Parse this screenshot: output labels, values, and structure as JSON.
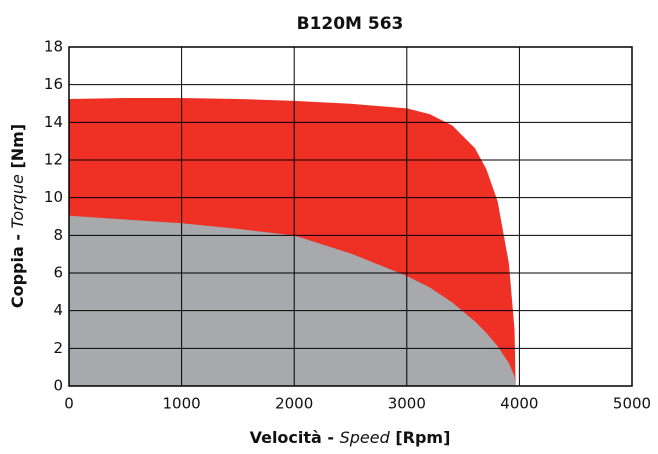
{
  "chart_data": {
    "type": "area",
    "title": "B120M 563",
    "xlabel_parts": [
      {
        "text": "Velocità - ",
        "italic": false
      },
      {
        "text": "Speed",
        "italic": true
      },
      {
        "text": " [Rpm]",
        "italic": false
      }
    ],
    "ylabel_parts": [
      {
        "text": "Coppia - ",
        "italic": false
      },
      {
        "text": "Torque",
        "italic": true
      },
      {
        "text": " [Nm]",
        "italic": false
      }
    ],
    "x": [
      0,
      500,
      1000,
      1500,
      2000,
      2500,
      3000,
      3200,
      3400,
      3600,
      3700,
      3800,
      3900,
      3950,
      3960
    ],
    "series": [
      {
        "color": "#ee3124",
        "values": [
          15.2,
          15.25,
          15.25,
          15.2,
          15.1,
          14.95,
          14.7,
          14.4,
          13.8,
          12.6,
          11.5,
          9.8,
          6.5,
          3,
          0
        ]
      },
      {
        "color": "#a7a9ac",
        "values": [
          9.0,
          8.8,
          8.6,
          8.3,
          7.95,
          7.0,
          5.8,
          5.2,
          4.4,
          3.4,
          2.8,
          2.1,
          1.2,
          0.5,
          0
        ]
      }
    ],
    "xlim": [
      0,
      5000
    ],
    "xticks": [
      0,
      1000,
      2000,
      3000,
      4000,
      5000
    ],
    "ylim": [
      0,
      18
    ],
    "yticks": [
      0,
      2,
      4,
      6,
      8,
      10,
      12,
      14,
      16,
      18
    ],
    "grid": true
  }
}
